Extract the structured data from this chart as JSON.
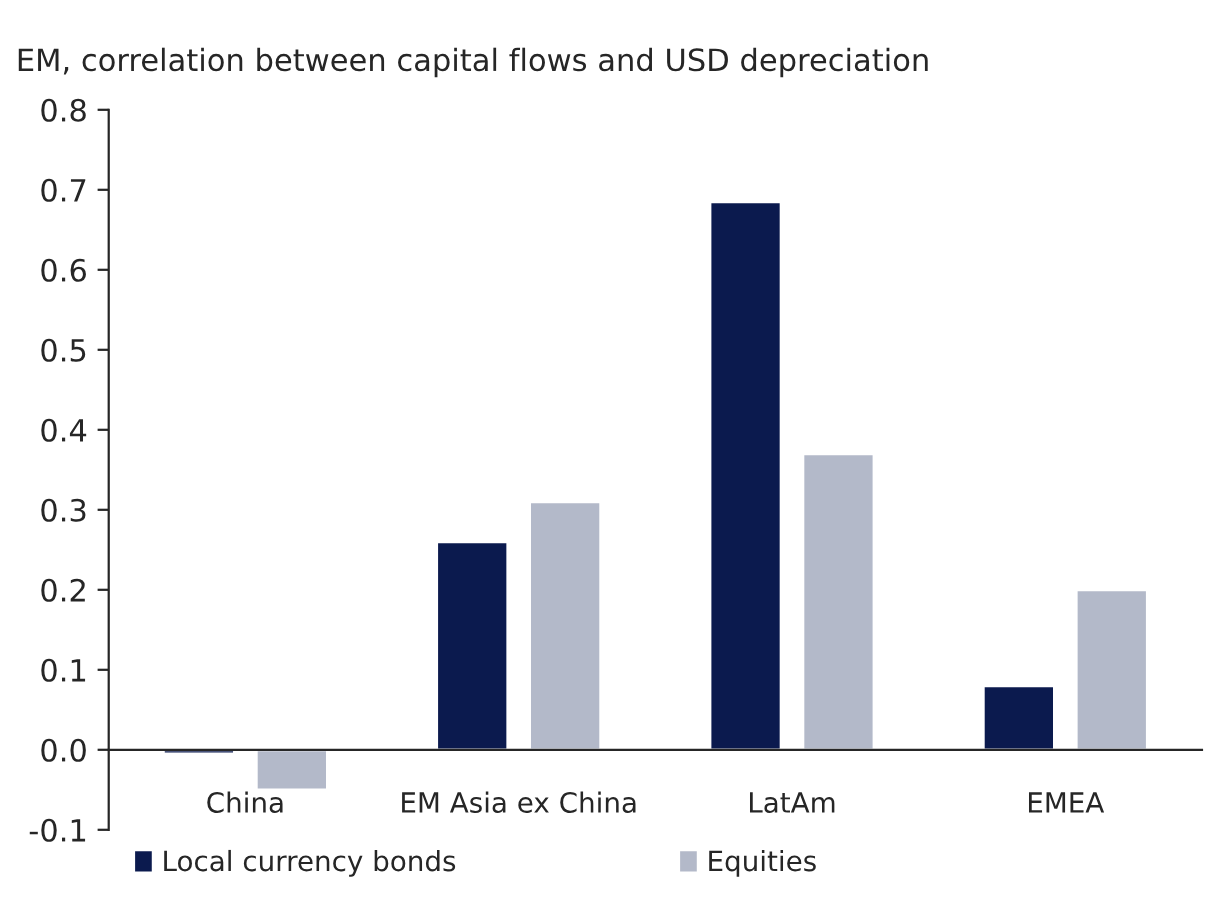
{
  "chart_data": {
    "type": "bar",
    "title": "EM, correlation between capital flows and USD depreciation",
    "categories": [
      "China",
      "EM Asia ex China",
      "LatAm",
      "EMEA"
    ],
    "series": [
      {
        "name": "Local currency bonds",
        "color": "#0b1a4e",
        "values": [
          -0.005,
          0.26,
          0.685,
          0.08
        ]
      },
      {
        "name": "Equities",
        "color": "#b3b9c9",
        "values": [
          -0.05,
          0.31,
          0.37,
          0.2
        ]
      }
    ],
    "ylim": [
      -0.1,
      0.8
    ],
    "yticks": [
      {
        "value": -0.1,
        "label": "-0.1"
      },
      {
        "value": 0,
        "label": "0.0"
      },
      0.1,
      0.2,
      0.3,
      0.4,
      0.5,
      0.6,
      0.7,
      0.8
    ],
    "grid": false,
    "legend": "bottom"
  }
}
